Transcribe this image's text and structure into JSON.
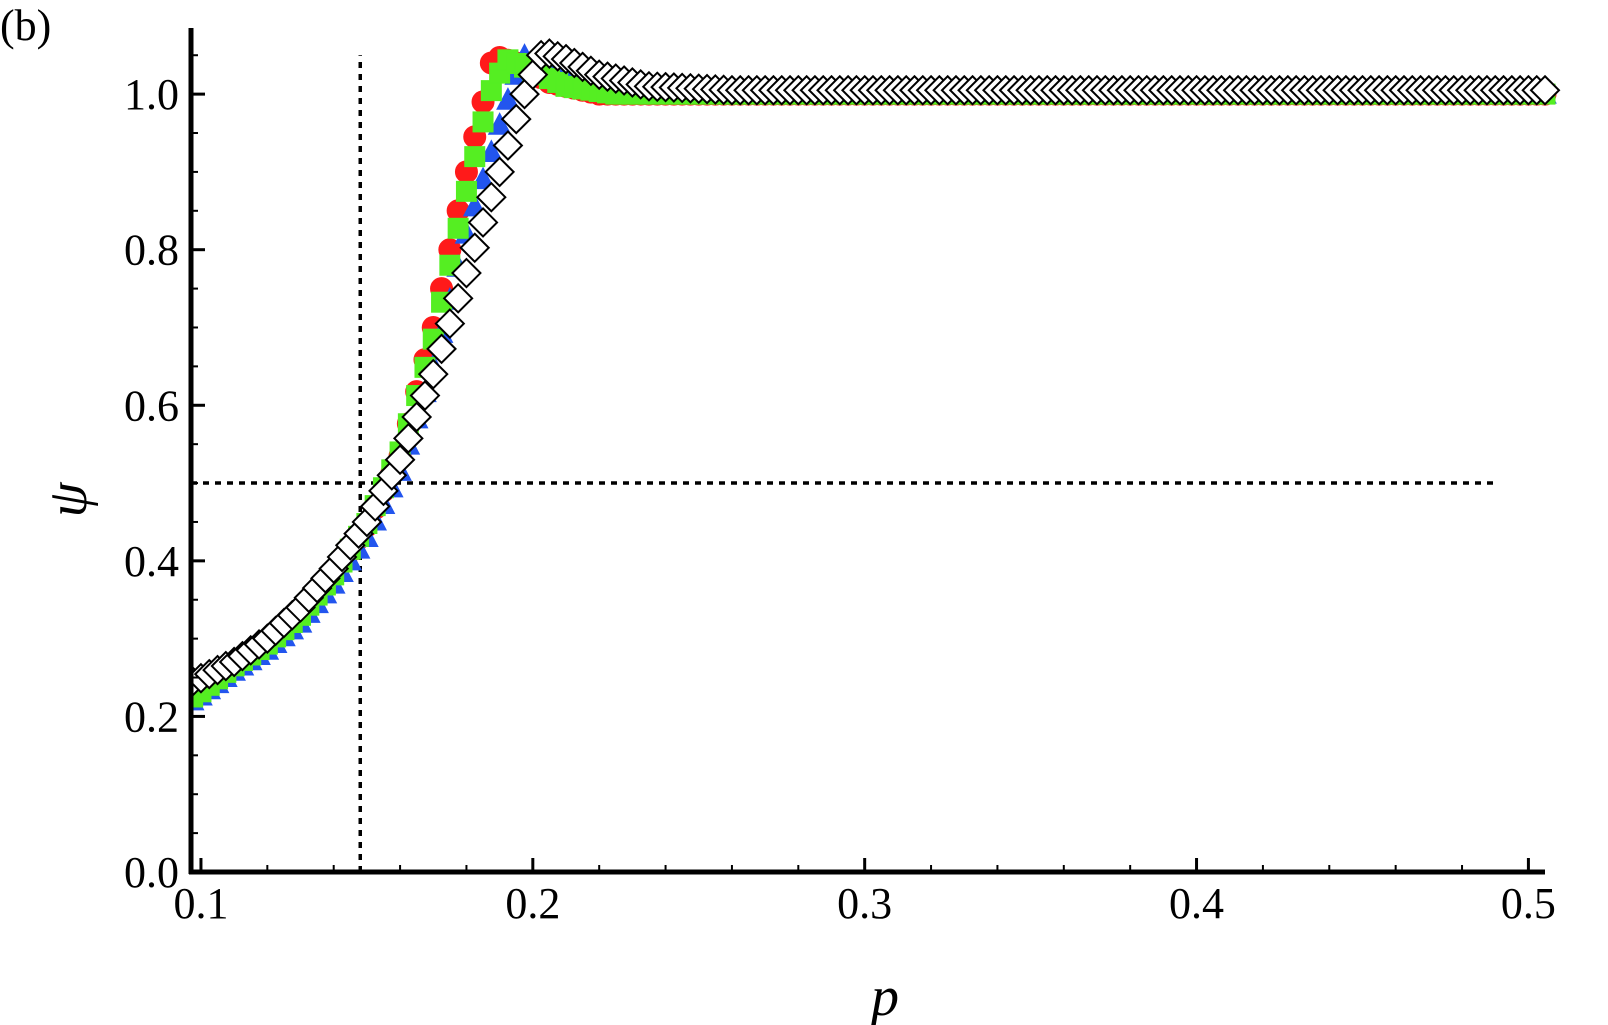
{
  "panel_label": "(b)",
  "chart_data": {
    "type": "scatter",
    "title": "",
    "xlabel": "p",
    "ylabel": "ψ",
    "xlim": [
      0.097,
      0.505
    ],
    "ylim": [
      0.0,
      1.085
    ],
    "xticks": [
      {
        "value": 0.1,
        "label": "0.1"
      },
      {
        "value": 0.2,
        "label": "0.2"
      },
      {
        "value": 0.3,
        "label": "0.3"
      },
      {
        "value": 0.4,
        "label": "0.4"
      },
      {
        "value": 0.5,
        "label": "0.5"
      }
    ],
    "yticks": [
      {
        "value": 0.0,
        "label": "0.0"
      },
      {
        "value": 0.2,
        "label": "0.2"
      },
      {
        "value": 0.4,
        "label": "0.4"
      },
      {
        "value": 0.6,
        "label": "0.6"
      },
      {
        "value": 0.8,
        "label": "0.8"
      },
      {
        "value": 1.0,
        "label": "1.0"
      }
    ],
    "grid": false,
    "legend": "none",
    "reference_lines": [
      {
        "orientation": "vertical",
        "x": 0.148,
        "y_from": 0.0,
        "y_to": 1.05,
        "style": "dotted"
      },
      {
        "orientation": "horizontal",
        "y": 0.5,
        "x_from": 0.097,
        "x_to": 0.49,
        "style": "dotted"
      }
    ],
    "x_step": 0.0025,
    "series": [
      {
        "marker": "circle",
        "color": "#ff1a1a",
        "outline": "#ff1a1a",
        "curve": [
          [
            0.098,
            0.225
          ],
          [
            0.11,
            0.265
          ],
          [
            0.12,
            0.295
          ],
          [
            0.13,
            0.33
          ],
          [
            0.14,
            0.38
          ],
          [
            0.15,
            0.445
          ],
          [
            0.16,
            0.535
          ],
          [
            0.17,
            0.7
          ],
          [
            0.18,
            0.9
          ],
          [
            0.185,
            0.99
          ],
          [
            0.188,
            1.05
          ],
          [
            0.195,
            1.04
          ],
          [
            0.205,
            1.015
          ],
          [
            0.22,
            1.0
          ],
          [
            0.505,
            1.0
          ]
        ]
      },
      {
        "marker": "triangle",
        "color": "#2255ee",
        "outline": "#2255ee",
        "curve": [
          [
            0.098,
            0.22
          ],
          [
            0.11,
            0.258
          ],
          [
            0.12,
            0.285
          ],
          [
            0.13,
            0.32
          ],
          [
            0.14,
            0.37
          ],
          [
            0.15,
            0.43
          ],
          [
            0.16,
            0.515
          ],
          [
            0.17,
            0.65
          ],
          [
            0.18,
            0.82
          ],
          [
            0.19,
            0.96
          ],
          [
            0.197,
            1.05
          ],
          [
            0.205,
            1.03
          ],
          [
            0.215,
            1.01
          ],
          [
            0.23,
            1.0
          ],
          [
            0.505,
            1.0
          ]
        ]
      },
      {
        "marker": "square",
        "color": "#55ee22",
        "outline": "#55ee22",
        "curve": [
          [
            0.098,
            0.225
          ],
          [
            0.11,
            0.265
          ],
          [
            0.12,
            0.293
          ],
          [
            0.13,
            0.33
          ],
          [
            0.14,
            0.382
          ],
          [
            0.15,
            0.448
          ],
          [
            0.16,
            0.54
          ],
          [
            0.17,
            0.685
          ],
          [
            0.18,
            0.875
          ],
          [
            0.187,
            1.0
          ],
          [
            0.192,
            1.045
          ],
          [
            0.2,
            1.03
          ],
          [
            0.21,
            1.01
          ],
          [
            0.225,
            1.0
          ],
          [
            0.505,
            1.0
          ]
        ]
      },
      {
        "marker": "diamond",
        "color": "#ffffff",
        "outline": "#000000",
        "curve": [
          [
            0.098,
            0.245
          ],
          [
            0.11,
            0.27
          ],
          [
            0.12,
            0.3
          ],
          [
            0.13,
            0.34
          ],
          [
            0.14,
            0.39
          ],
          [
            0.15,
            0.45
          ],
          [
            0.16,
            0.53
          ],
          [
            0.17,
            0.64
          ],
          [
            0.18,
            0.77
          ],
          [
            0.19,
            0.9
          ],
          [
            0.197,
            0.995
          ],
          [
            0.203,
            1.055
          ],
          [
            0.21,
            1.045
          ],
          [
            0.22,
            1.025
          ],
          [
            0.235,
            1.01
          ],
          [
            0.26,
            1.005
          ],
          [
            0.505,
            1.005
          ]
        ]
      }
    ]
  }
}
